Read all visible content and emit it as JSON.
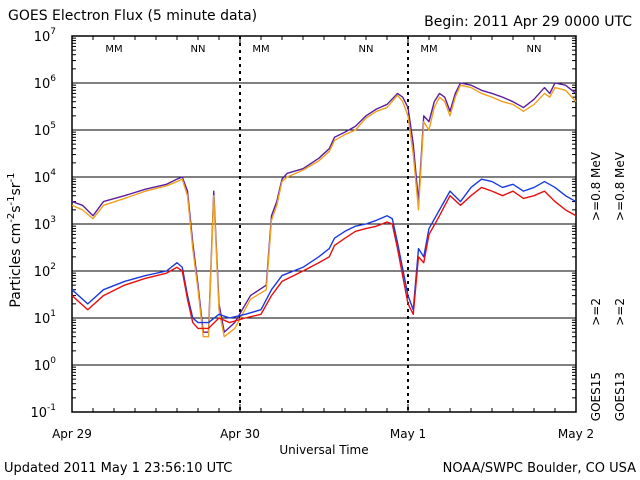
{
  "header": {
    "title": "GOES Electron Flux (5 minute data)",
    "begin": "Begin: 2011 Apr 29 0000 UTC"
  },
  "footer": {
    "updated": "Updated 2011 May  1 23:56:10 UTC",
    "credit": "NOAA/SWPC Boulder, CO USA"
  },
  "colors": {
    "goes15_08": "#5a1fa0",
    "goes13_08": "#f0a020",
    "goes15_2": "#1a3ae0",
    "goes13_2": "#e81010",
    "marker_m": "#1a3ae0",
    "marker_n": "#e81010"
  },
  "chart_data": {
    "type": "line",
    "y_scale": "log",
    "ylim": [
      0.1,
      10000000
    ],
    "x_range": [
      "2011-04-29 00:00",
      "2011-05-02 00:00"
    ],
    "y_ticks": [
      "10^-1",
      "10^0",
      "10^1",
      "10^2",
      "10^3",
      "10^4",
      "10^5",
      "10^6",
      "10^7"
    ],
    "x_ticks": [
      "Apr 29",
      "Apr 30",
      "May 1",
      "May 2"
    ],
    "xlabel": "Universal Time",
    "ylabel_parts": [
      "Particles cm",
      "-2",
      "s",
      "-1",
      "sr",
      "-1"
    ],
    "threshold": 1000,
    "markers": [
      {
        "label": "MM",
        "x": "2011-04-29 06:00",
        "color": "marker_m"
      },
      {
        "label": "NN",
        "x": "2011-04-29 18:00",
        "color": "marker_n"
      },
      {
        "label": "MM",
        "x": "2011-04-30 03:00",
        "color": "marker_m"
      },
      {
        "label": "NN",
        "x": "2011-04-30 18:00",
        "color": "marker_n"
      },
      {
        "label": "MM",
        "x": "2011-05-01 03:00",
        "color": "marker_m"
      },
      {
        "label": "NN",
        "x": "2011-05-01 18:00",
        "color": "marker_n"
      }
    ],
    "right_labels": [
      {
        "lines": [
          ">=0.8 MeV"
        ],
        "color": "goes15_08"
      },
      {
        "lines": [
          ">=0.8 MeV"
        ],
        "color": "goes13_08"
      },
      {
        "lines": [
          ">=2"
        ],
        "color": "goes15_2"
      },
      {
        "lines": [
          ">=2"
        ],
        "color": "goes13_2"
      },
      {
        "lines": [
          "GOES15"
        ],
        "color": "#000000"
      },
      {
        "lines": [
          "GOES13"
        ],
        "color": "#000000"
      }
    ],
    "series": [
      {
        "name": "GOES15 >=0.8 MeV",
        "color": "goes15_08",
        "points": [
          [
            0,
            3000
          ],
          [
            2,
            2500
          ],
          [
            4,
            1500
          ],
          [
            6,
            3000
          ],
          [
            10,
            4000
          ],
          [
            14,
            5500
          ],
          [
            18,
            7000
          ],
          [
            20,
            9000
          ],
          [
            21,
            10000
          ],
          [
            22,
            5000
          ],
          [
            23,
            400
          ],
          [
            24,
            50
          ],
          [
            25,
            5
          ],
          [
            26,
            5
          ],
          [
            27,
            5000
          ],
          [
            28,
            20
          ],
          [
            29,
            5
          ],
          [
            31,
            8
          ],
          [
            34,
            30
          ],
          [
            37,
            50
          ],
          [
            38,
            1500
          ],
          [
            39,
            3000
          ],
          [
            40,
            9000
          ],
          [
            41,
            12000
          ],
          [
            44,
            15000
          ],
          [
            47,
            25000
          ],
          [
            49,
            40000
          ],
          [
            50,
            70000
          ],
          [
            52,
            90000
          ],
          [
            54,
            120000
          ],
          [
            56,
            200000
          ],
          [
            58,
            280000
          ],
          [
            60,
            350000
          ],
          [
            62,
            600000
          ],
          [
            63,
            500000
          ],
          [
            64,
            300000
          ],
          [
            65,
            50000
          ],
          [
            66,
            3000
          ],
          [
            67,
            200000
          ],
          [
            68,
            150000
          ],
          [
            69,
            400000
          ],
          [
            70,
            600000
          ],
          [
            71,
            500000
          ],
          [
            72,
            250000
          ],
          [
            73,
            600000
          ],
          [
            74,
            1000000
          ],
          [
            76,
            900000
          ],
          [
            78,
            700000
          ],
          [
            80,
            600000
          ],
          [
            82,
            500000
          ],
          [
            84,
            400000
          ],
          [
            86,
            300000
          ],
          [
            88,
            450000
          ],
          [
            90,
            800000
          ],
          [
            91,
            600000
          ],
          [
            92,
            1000000
          ],
          [
            94,
            900000
          ],
          [
            96,
            600000
          ]
        ]
      },
      {
        "name": "GOES13 >=0.8 MeV",
        "color": "goes13_08",
        "points": [
          [
            0,
            2500
          ],
          [
            2,
            2000
          ],
          [
            4,
            1300
          ],
          [
            6,
            2500
          ],
          [
            10,
            3500
          ],
          [
            14,
            5000
          ],
          [
            18,
            6500
          ],
          [
            20,
            8000
          ],
          [
            21,
            9000
          ],
          [
            22,
            4000
          ],
          [
            23,
            300
          ],
          [
            24,
            40
          ],
          [
            25,
            4
          ],
          [
            26,
            4
          ],
          [
            27,
            4000
          ],
          [
            28,
            15
          ],
          [
            29,
            4
          ],
          [
            31,
            6
          ],
          [
            34,
            25
          ],
          [
            37,
            40
          ],
          [
            38,
            1200
          ],
          [
            39,
            2500
          ],
          [
            40,
            8000
          ],
          [
            41,
            10000
          ],
          [
            44,
            14000
          ],
          [
            47,
            22000
          ],
          [
            49,
            35000
          ],
          [
            50,
            60000
          ],
          [
            52,
            80000
          ],
          [
            54,
            100000
          ],
          [
            56,
            180000
          ],
          [
            58,
            250000
          ],
          [
            60,
            300000
          ],
          [
            62,
            550000
          ],
          [
            63,
            400000
          ],
          [
            64,
            200000
          ],
          [
            65,
            30000
          ],
          [
            66,
            2000
          ],
          [
            67,
            150000
          ],
          [
            68,
            100000
          ],
          [
            69,
            300000
          ],
          [
            70,
            500000
          ],
          [
            71,
            400000
          ],
          [
            72,
            200000
          ],
          [
            73,
            500000
          ],
          [
            74,
            900000
          ],
          [
            76,
            800000
          ],
          [
            78,
            600000
          ],
          [
            80,
            500000
          ],
          [
            82,
            400000
          ],
          [
            84,
            350000
          ],
          [
            86,
            250000
          ],
          [
            88,
            350000
          ],
          [
            90,
            600000
          ],
          [
            91,
            500000
          ],
          [
            92,
            800000
          ],
          [
            94,
            700000
          ],
          [
            96,
            400000
          ]
        ]
      },
      {
        "name": "GOES15 >=2",
        "color": "goes15_2",
        "points": [
          [
            0,
            40
          ],
          [
            3,
            20
          ],
          [
            6,
            40
          ],
          [
            10,
            60
          ],
          [
            14,
            80
          ],
          [
            18,
            100
          ],
          [
            20,
            150
          ],
          [
            21,
            120
          ],
          [
            22,
            30
          ],
          [
            23,
            10
          ],
          [
            24,
            8
          ],
          [
            26,
            8
          ],
          [
            28,
            12
          ],
          [
            30,
            10
          ],
          [
            33,
            12
          ],
          [
            36,
            15
          ],
          [
            38,
            40
          ],
          [
            40,
            80
          ],
          [
            44,
            120
          ],
          [
            47,
            200
          ],
          [
            49,
            300
          ],
          [
            50,
            500
          ],
          [
            52,
            700
          ],
          [
            54,
            900
          ],
          [
            56,
            1000
          ],
          [
            58,
            1200
          ],
          [
            60,
            1500
          ],
          [
            61,
            1300
          ],
          [
            62,
            400
          ],
          [
            64,
            30
          ],
          [
            65,
            15
          ],
          [
            66,
            300
          ],
          [
            67,
            200
          ],
          [
            68,
            800
          ],
          [
            70,
            2000
          ],
          [
            72,
            5000
          ],
          [
            74,
            3000
          ],
          [
            76,
            6000
          ],
          [
            78,
            9000
          ],
          [
            80,
            8000
          ],
          [
            82,
            6000
          ],
          [
            84,
            7000
          ],
          [
            86,
            5000
          ],
          [
            88,
            6000
          ],
          [
            90,
            8000
          ],
          [
            92,
            6000
          ],
          [
            94,
            4000
          ],
          [
            96,
            3000
          ]
        ]
      },
      {
        "name": "GOES13 >=2",
        "color": "goes13_2",
        "points": [
          [
            0,
            30
          ],
          [
            3,
            15
          ],
          [
            6,
            30
          ],
          [
            10,
            50
          ],
          [
            14,
            70
          ],
          [
            18,
            90
          ],
          [
            20,
            120
          ],
          [
            21,
            100
          ],
          [
            22,
            25
          ],
          [
            23,
            8
          ],
          [
            24,
            6
          ],
          [
            26,
            6
          ],
          [
            28,
            10
          ],
          [
            30,
            8
          ],
          [
            33,
            10
          ],
          [
            36,
            12
          ],
          [
            38,
            30
          ],
          [
            40,
            60
          ],
          [
            44,
            100
          ],
          [
            47,
            150
          ],
          [
            49,
            200
          ],
          [
            50,
            350
          ],
          [
            52,
            500
          ],
          [
            54,
            700
          ],
          [
            56,
            800
          ],
          [
            58,
            900
          ],
          [
            60,
            1100
          ],
          [
            61,
            1000
          ],
          [
            62,
            300
          ],
          [
            64,
            20
          ],
          [
            65,
            12
          ],
          [
            66,
            200
          ],
          [
            67,
            150
          ],
          [
            68,
            600
          ],
          [
            70,
            1500
          ],
          [
            72,
            4000
          ],
          [
            74,
            2500
          ],
          [
            76,
            4000
          ],
          [
            78,
            6000
          ],
          [
            80,
            5000
          ],
          [
            82,
            4000
          ],
          [
            84,
            5000
          ],
          [
            86,
            3500
          ],
          [
            88,
            4000
          ],
          [
            90,
            5000
          ],
          [
            92,
            3000
          ],
          [
            94,
            2000
          ],
          [
            96,
            1500
          ]
        ]
      }
    ]
  }
}
